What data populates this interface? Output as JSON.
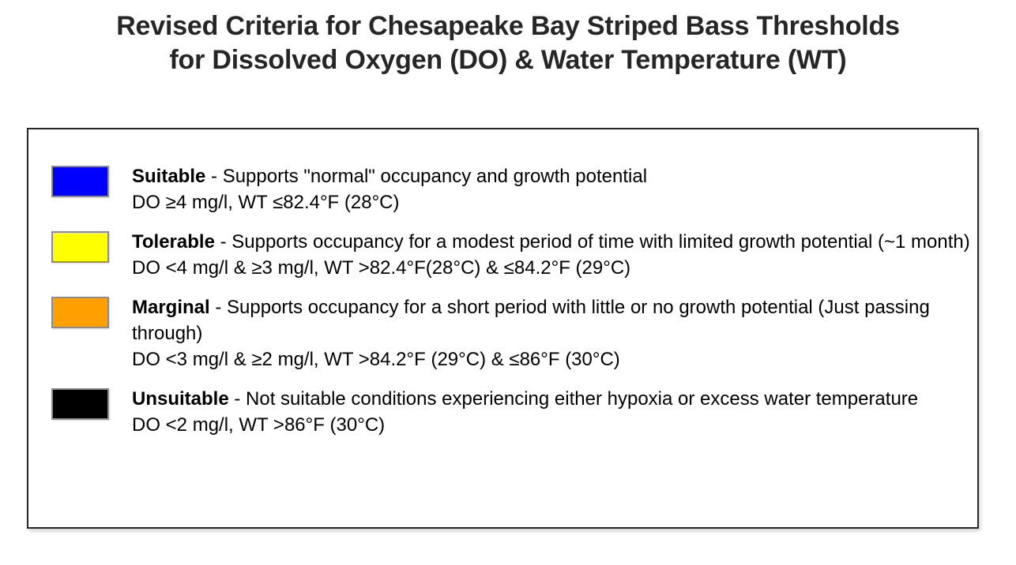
{
  "title": {
    "line1": "Revised Criteria for Chesapeake Bay Striped Bass Thresholds",
    "line2": "for Dissolved Oxygen (DO) & Water Temperature (WT)"
  },
  "legend": {
    "items": [
      {
        "label": "Suitable",
        "color": "#0000ff",
        "description": " - Supports \"normal\" occupancy and growth potential",
        "criteria": "DO ≥4 mg/l, WT ≤82.4°F (28°C)"
      },
      {
        "label": "Tolerable",
        "color": "#ffff00",
        "description": " - Supports occupancy for a modest period of time with limited growth potential (~1 month)",
        "criteria": "DO <4 mg/l & ≥3 mg/l, WT >82.4°F(28°C) & ≤84.2°F (29°C)"
      },
      {
        "label": "Marginal",
        "color": "#ffa000",
        "description": " - Supports occupancy for a short period with little or no growth potential (Just passing through)",
        "criteria": "DO <3 mg/l & ≥2 mg/l, WT >84.2°F (29°C) & ≤86°F (30°C)"
      },
      {
        "label": "Unsuitable",
        "color": "#000000",
        "description": " - Not suitable conditions experiencing either hypoxia or excess water temperature",
        "criteria": "DO <2 mg/l, WT >86°F (30°C)"
      }
    ]
  }
}
